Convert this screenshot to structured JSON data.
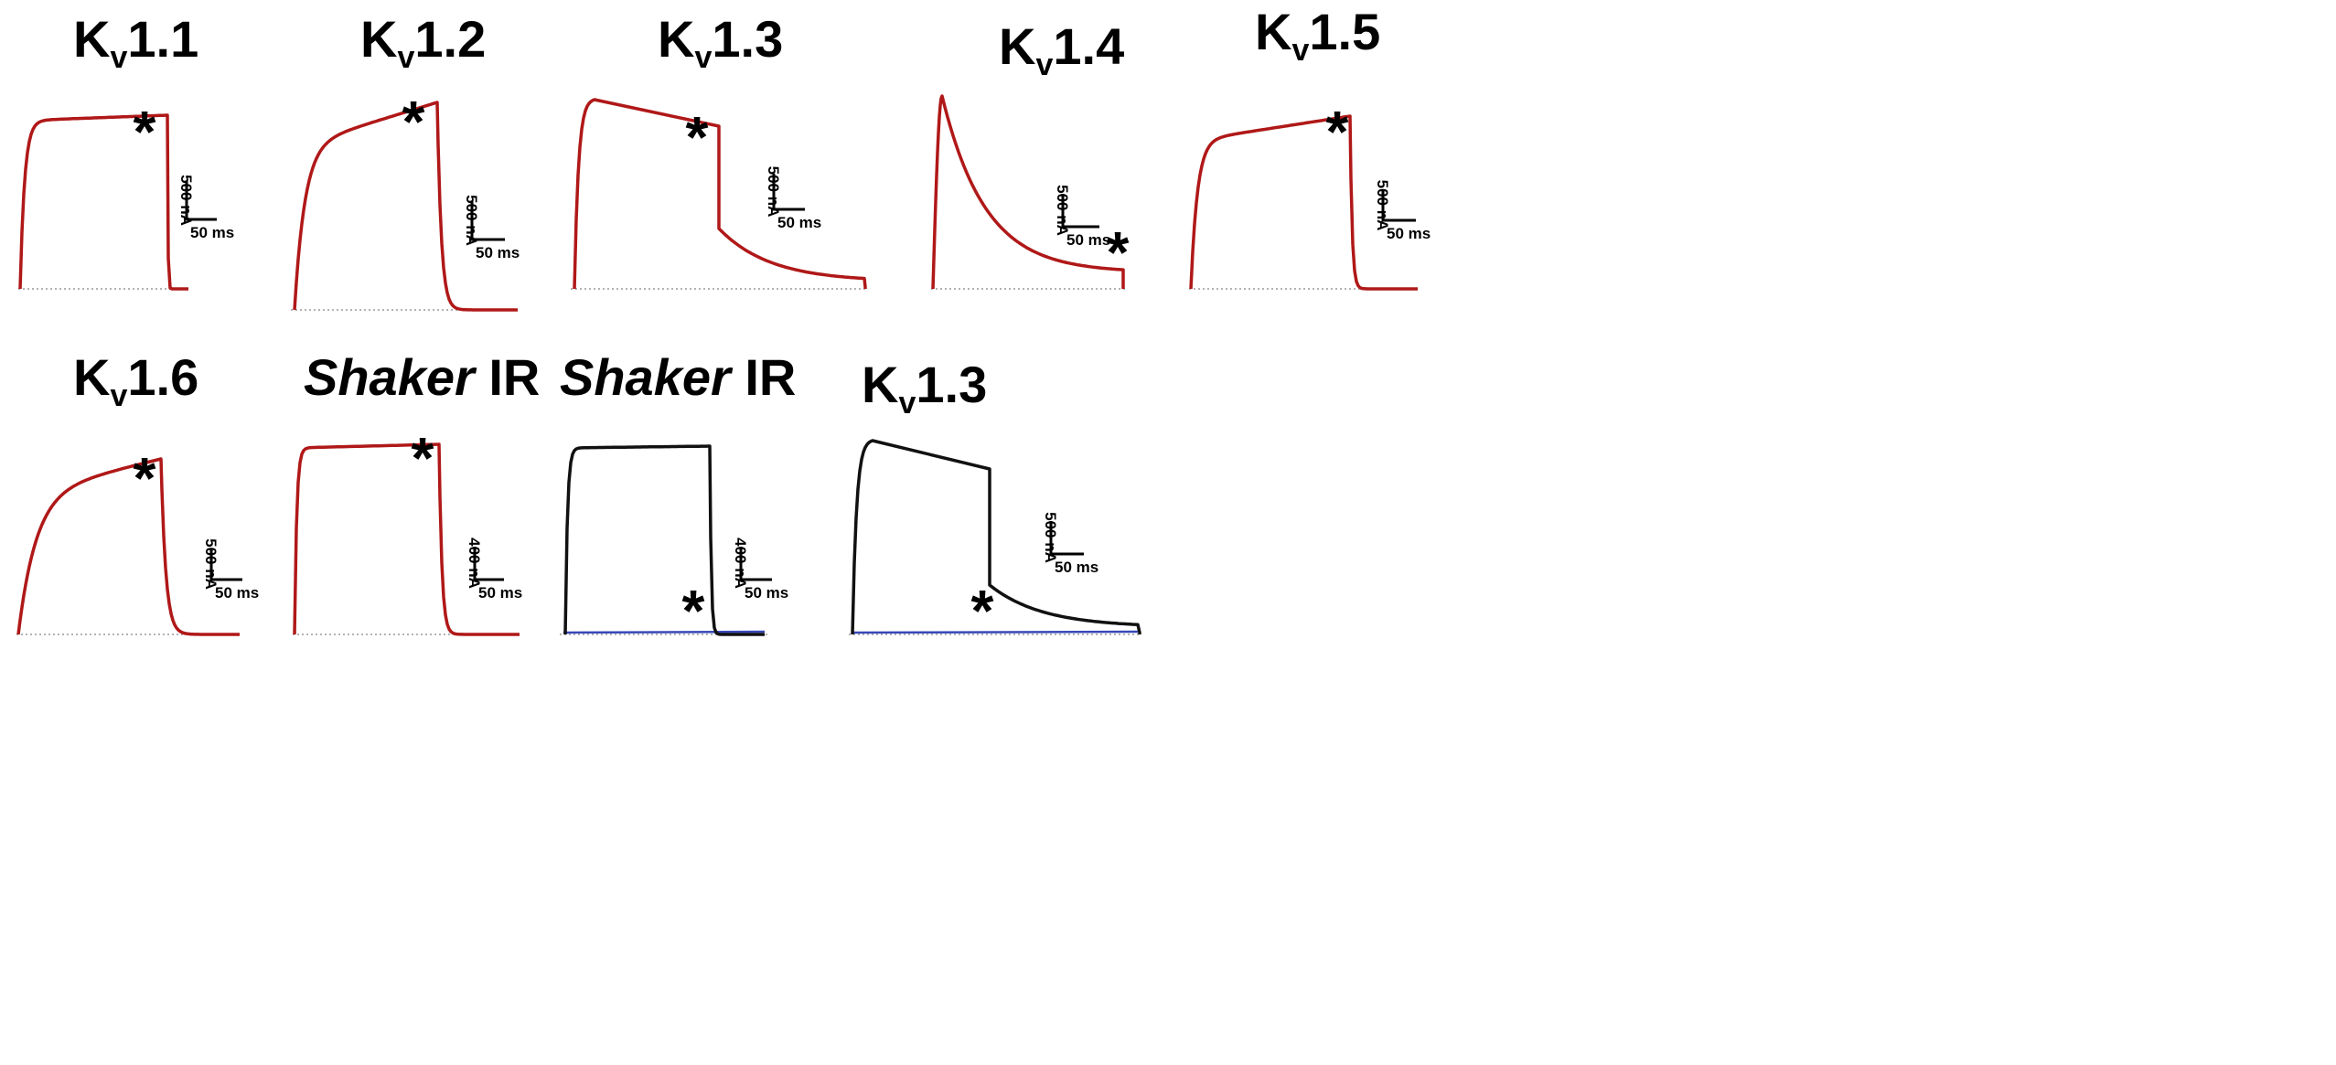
{
  "figure": {
    "colors": {
      "red_trace": "#b01818",
      "black_trace": "#111111",
      "baseline": "#9a9a9a",
      "blue_baseline": "#3848b8",
      "text": "#000000"
    }
  },
  "chart_data": [
    {
      "type": "line",
      "title_main": "K",
      "title_sub": "v",
      "title_rest": "1.1",
      "series": [
        {
          "color": "red",
          "kinetics": "non-inactivating"
        }
      ],
      "scale_bar": {
        "y_label": "500 nA",
        "x_label": "50 ms"
      },
      "marker": "*"
    },
    {
      "type": "line",
      "title_main": "K",
      "title_sub": "v",
      "title_rest": "1.2",
      "series": [
        {
          "color": "red",
          "kinetics": "slow-activating, non-inactivating"
        }
      ],
      "scale_bar": {
        "y_label": "500 nA",
        "x_label": "50 ms"
      },
      "marker": "*"
    },
    {
      "type": "line",
      "title_main": "K",
      "title_sub": "v",
      "title_rest": "1.3",
      "series": [
        {
          "color": "red",
          "kinetics": "slow inactivation"
        }
      ],
      "scale_bar": {
        "y_label": "500 nA",
        "x_label": "50 ms"
      },
      "marker": "*"
    },
    {
      "type": "line",
      "title_main": "K",
      "title_sub": "v",
      "title_rest": "1.4",
      "series": [
        {
          "color": "red",
          "kinetics": "fast inactivation"
        }
      ],
      "scale_bar": {
        "y_label": "500 nA",
        "x_label": "50 ms"
      },
      "marker": "*"
    },
    {
      "type": "line",
      "title_main": "K",
      "title_sub": "v",
      "title_rest": "1.5",
      "series": [
        {
          "color": "red",
          "kinetics": "non-inactivating"
        }
      ],
      "scale_bar": {
        "y_label": "500 nA",
        "x_label": "50 ms"
      },
      "marker": "*"
    },
    {
      "type": "line",
      "title_main": "K",
      "title_sub": "v",
      "title_rest": "1.6",
      "series": [
        {
          "color": "red",
          "kinetics": "slow-activating, non-inactivating"
        }
      ],
      "scale_bar": {
        "y_label": "500 nA",
        "x_label": "50 ms"
      },
      "marker": "*"
    },
    {
      "type": "line",
      "title_italic": "Shaker",
      "title_rest": " IR",
      "series": [
        {
          "color": "red",
          "kinetics": "non-inactivating"
        }
      ],
      "scale_bar": {
        "y_label": "400 nA",
        "x_label": "50 ms"
      },
      "marker": "*"
    },
    {
      "type": "line",
      "title_italic": "Shaker",
      "title_rest": " IR",
      "series": [
        {
          "color": "black",
          "kinetics": "non-inactivating"
        },
        {
          "color": "blue",
          "kinetics": "flat near baseline"
        }
      ],
      "scale_bar": {
        "y_label": "400 nA",
        "x_label": "50 ms"
      },
      "marker": "*"
    },
    {
      "type": "line",
      "title_main": "K",
      "title_sub": "v",
      "title_rest": "1.3",
      "series": [
        {
          "color": "black",
          "kinetics": "slow inactivation"
        },
        {
          "color": "blue",
          "kinetics": "flat near baseline"
        }
      ],
      "scale_bar": {
        "y_label": "500 nA",
        "x_label": "50 ms"
      },
      "marker": "*"
    }
  ]
}
